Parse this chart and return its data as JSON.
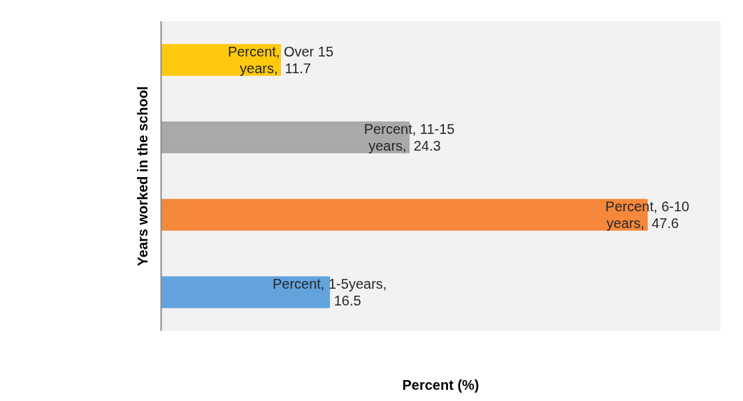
{
  "chart_data": {
    "type": "bar",
    "orientation": "horizontal",
    "xlabel": "Percent (%)",
    "ylabel": "Years worked in the school",
    "categories": [
      null,
      null,
      null,
      null
    ],
    "series": [
      {
        "values": [
          11.7,
          24.3,
          47.6,
          16.5
        ],
        "colors": [
          "#ffc90e",
          "#a9a9a9",
          "#f5883b",
          "#62a3de"
        ]
      }
    ],
    "value_labels": [
      "Percent, Over 15 years, 11.7",
      "Percent, 11-15 years, 24.3",
      "Percent, 6-10 years, 47.6",
      "Percent, 1-5years, 16.5"
    ],
    "data_labels": true,
    "grid": false,
    "tick_labels": false
  }
}
